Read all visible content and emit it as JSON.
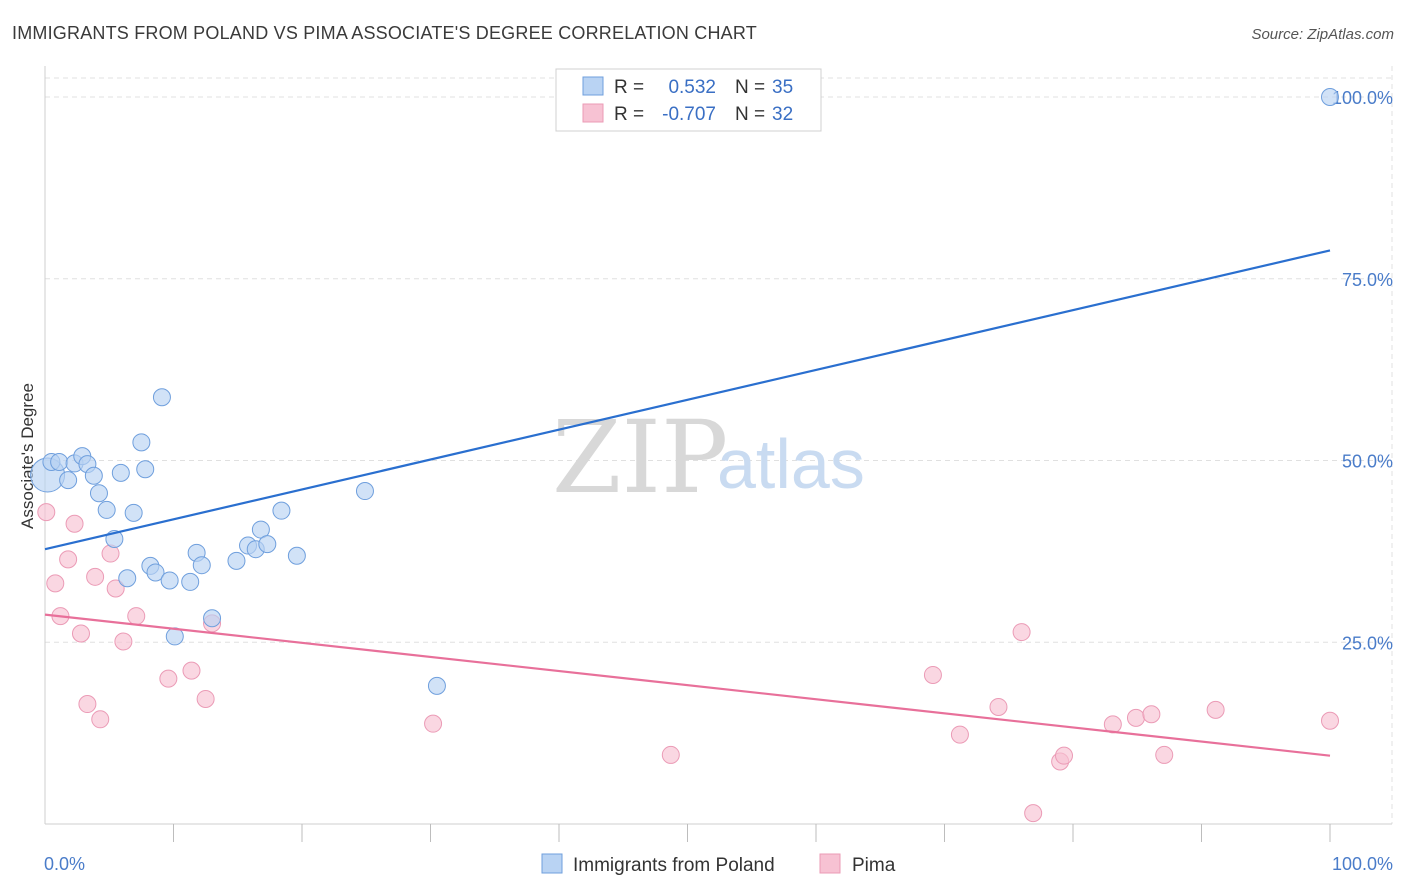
{
  "title": "IMMIGRANTS FROM POLAND VS PIMA ASSOCIATE'S DEGREE CORRELATION CHART",
  "source": "Source: ZipAtlas.com",
  "watermark": {
    "zip": "ZIP",
    "atlas": "atlas"
  },
  "colors": {
    "blue": "#2a6fcf",
    "blue_fill": "#b9d3f3",
    "blue_stroke": "#6f9fdd",
    "pink": "#e8709a",
    "pink_fill": "#f7c2d3",
    "pink_stroke": "#eb9bb6",
    "grid": "#e0e0e0",
    "tick_text": "#4a7cc9"
  },
  "legend": {
    "rows": [
      {
        "r_label": "R =",
        "r_value": "0.532",
        "n_label": "N =",
        "n_value": "35"
      },
      {
        "r_label": "R =",
        "r_value": "-0.707",
        "n_label": "N =",
        "n_value": "32"
      }
    ]
  },
  "chart_data": {
    "type": "scatter",
    "title": "IMMIGRANTS FROM POLAND VS PIMA ASSOCIATE'S DEGREE CORRELATION CHART",
    "xlabel": "",
    "ylabel": "Associate's Degree",
    "xlim": [
      0,
      100
    ],
    "ylim": [
      0,
      102
    ],
    "x_tick_labels": [
      {
        "value": 0,
        "label": "0.0%"
      },
      {
        "value": 100,
        "label": "100.0%"
      }
    ],
    "y_tick_labels": [
      {
        "value": 25,
        "label": "25.0%"
      },
      {
        "value": 50,
        "label": "50.0%"
      },
      {
        "value": 75,
        "label": "75.0%"
      },
      {
        "value": 100,
        "label": "100.0%"
      }
    ],
    "x_minor_ticks": [
      10,
      20,
      30,
      40,
      50,
      60,
      70,
      80,
      90,
      100
    ],
    "series": [
      {
        "name": "Immigrants from Poland",
        "color": "blue",
        "trend": {
          "x": [
            0,
            100
          ],
          "y": [
            37.8,
            78.9
          ]
        },
        "points": [
          {
            "x": 0.2,
            "y": 48.0,
            "big": true
          },
          {
            "x": 0.5,
            "y": 49.8
          },
          {
            "x": 1.1,
            "y": 49.8
          },
          {
            "x": 1.8,
            "y": 47.3
          },
          {
            "x": 2.3,
            "y": 49.6
          },
          {
            "x": 2.9,
            "y": 50.6
          },
          {
            "x": 3.3,
            "y": 49.5
          },
          {
            "x": 3.8,
            "y": 47.9
          },
          {
            "x": 4.2,
            "y": 45.5
          },
          {
            "x": 4.8,
            "y": 43.2
          },
          {
            "x": 5.4,
            "y": 39.2
          },
          {
            "x": 5.9,
            "y": 48.3
          },
          {
            "x": 6.4,
            "y": 33.8
          },
          {
            "x": 6.9,
            "y": 42.8
          },
          {
            "x": 7.5,
            "y": 52.5
          },
          {
            "x": 7.8,
            "y": 48.8
          },
          {
            "x": 8.2,
            "y": 35.5
          },
          {
            "x": 8.6,
            "y": 34.6
          },
          {
            "x": 9.1,
            "y": 58.7
          },
          {
            "x": 9.7,
            "y": 33.5
          },
          {
            "x": 10.1,
            "y": 25.8
          },
          {
            "x": 11.3,
            "y": 33.3
          },
          {
            "x": 11.8,
            "y": 37.3
          },
          {
            "x": 12.2,
            "y": 35.6
          },
          {
            "x": 13.0,
            "y": 28.3
          },
          {
            "x": 14.9,
            "y": 36.2
          },
          {
            "x": 15.8,
            "y": 38.3
          },
          {
            "x": 16.4,
            "y": 37.8
          },
          {
            "x": 16.8,
            "y": 40.5
          },
          {
            "x": 17.3,
            "y": 38.5
          },
          {
            "x": 18.4,
            "y": 43.1
          },
          {
            "x": 19.6,
            "y": 36.9
          },
          {
            "x": 24.9,
            "y": 45.8
          },
          {
            "x": 30.5,
            "y": 19.0
          },
          {
            "x": 100.0,
            "y": 100.0
          }
        ]
      },
      {
        "name": "Pima",
        "color": "pink",
        "trend": {
          "x": [
            0,
            100
          ],
          "y": [
            28.8,
            9.4
          ]
        },
        "points": [
          {
            "x": 0.1,
            "y": 42.9
          },
          {
            "x": 0.8,
            "y": 33.1
          },
          {
            "x": 1.2,
            "y": 28.6
          },
          {
            "x": 1.8,
            "y": 36.4
          },
          {
            "x": 2.3,
            "y": 41.3
          },
          {
            "x": 2.8,
            "y": 26.2
          },
          {
            "x": 3.3,
            "y": 16.5
          },
          {
            "x": 3.9,
            "y": 34.0
          },
          {
            "x": 4.3,
            "y": 14.4
          },
          {
            "x": 5.1,
            "y": 37.2
          },
          {
            "x": 5.5,
            "y": 32.4
          },
          {
            "x": 6.1,
            "y": 25.1
          },
          {
            "x": 7.1,
            "y": 28.6
          },
          {
            "x": 9.6,
            "y": 20.0
          },
          {
            "x": 11.4,
            "y": 21.1
          },
          {
            "x": 12.5,
            "y": 17.2
          },
          {
            "x": 13.0,
            "y": 27.6
          },
          {
            "x": 30.2,
            "y": 13.8
          },
          {
            "x": 48.7,
            "y": 9.5
          },
          {
            "x": 69.1,
            "y": 20.5
          },
          {
            "x": 71.2,
            "y": 12.3
          },
          {
            "x": 74.2,
            "y": 16.1
          },
          {
            "x": 76.0,
            "y": 26.4
          },
          {
            "x": 76.9,
            "y": 1.5
          },
          {
            "x": 79.0,
            "y": 8.6
          },
          {
            "x": 79.3,
            "y": 9.4
          },
          {
            "x": 83.1,
            "y": 13.7
          },
          {
            "x": 84.9,
            "y": 14.6
          },
          {
            "x": 86.1,
            "y": 15.1
          },
          {
            "x": 87.1,
            "y": 9.5
          },
          {
            "x": 91.1,
            "y": 15.7
          },
          {
            "x": 100.0,
            "y": 14.2
          }
        ]
      }
    ]
  }
}
